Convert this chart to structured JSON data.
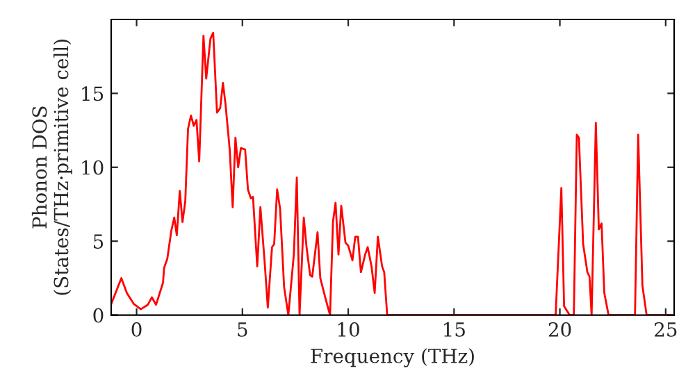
{
  "chart_data": {
    "type": "line",
    "xlabel": "Frequency (THz)",
    "ylabel": "Phonon DOS\n(States/THz·primitive cell)",
    "xlim": [
      -1.2,
      25.4
    ],
    "ylim": [
      0,
      20
    ],
    "xticks": [
      0,
      5,
      10,
      15,
      20,
      25
    ],
    "yticks": [
      0,
      5,
      10,
      15
    ],
    "grid": false,
    "legend": false,
    "marker": "none",
    "line_style": "solid",
    "series": [
      {
        "color": "#ff0000",
        "x": [
          -1.2,
          -0.72,
          -0.46,
          -0.13,
          0.2,
          0.53,
          0.72,
          0.92,
          1.25,
          1.3,
          1.45,
          1.64,
          1.78,
          1.9,
          2.04,
          2.17,
          2.3,
          2.43,
          2.57,
          2.7,
          2.83,
          2.96,
          3.16,
          3.29,
          3.49,
          3.62,
          3.8,
          3.95,
          4.08,
          4.2,
          4.4,
          4.54,
          4.67,
          4.8,
          4.93,
          5.13,
          5.26,
          5.4,
          5.5,
          5.7,
          5.85,
          6.05,
          6.2,
          6.4,
          6.5,
          6.64,
          6.78,
          6.97,
          7.17,
          7.43,
          7.57,
          7.7,
          7.9,
          8.03,
          8.2,
          8.3,
          8.55,
          8.68,
          8.95,
          9.14,
          9.28,
          9.4,
          9.54,
          9.67,
          9.87,
          10.0,
          10.2,
          10.33,
          10.46,
          10.6,
          10.8,
          10.92,
          11.1,
          11.25,
          11.4,
          11.6,
          11.7,
          11.84,
          19.8,
          20.07,
          20.2,
          20.46,
          20.66,
          20.8,
          20.9,
          21.1,
          21.3,
          21.4,
          21.5,
          21.7,
          21.84,
          21.97,
          22.1,
          22.3,
          23.55,
          23.7,
          23.9,
          24.1,
          25.2
        ],
        "values": [
          0.75,
          2.5,
          1.5,
          0.75,
          0.4,
          0.7,
          1.2,
          0.7,
          2.2,
          3.2,
          3.8,
          5.7,
          6.6,
          5.4,
          8.4,
          6.3,
          7.7,
          12.6,
          13.5,
          12.8,
          13.2,
          10.4,
          18.9,
          16,
          18.7,
          19.1,
          13.7,
          14,
          15.7,
          14.3,
          11.2,
          7.3,
          12.0,
          10,
          11.3,
          11.2,
          8.5,
          7.9,
          8.0,
          3.3,
          7.3,
          3.6,
          0.5,
          4.6,
          4.8,
          8.5,
          7.2,
          1.9,
          0,
          4.1,
          9.3,
          0,
          6.6,
          4.6,
          2.7,
          2.6,
          5.6,
          2.5,
          1.0,
          0,
          6.3,
          7.6,
          4.1,
          7.4,
          4.9,
          4.7,
          3.7,
          5.3,
          5.3,
          2.9,
          4.1,
          4.6,
          3.3,
          1.5,
          5.3,
          3.3,
          2.9,
          0,
          0,
          8.6,
          0.6,
          0,
          0,
          12.2,
          12.0,
          4.8,
          2.9,
          2.6,
          0,
          13.0,
          5.8,
          6.2,
          1.5,
          0,
          0,
          12.2,
          2.0,
          0,
          0
        ]
      }
    ]
  }
}
